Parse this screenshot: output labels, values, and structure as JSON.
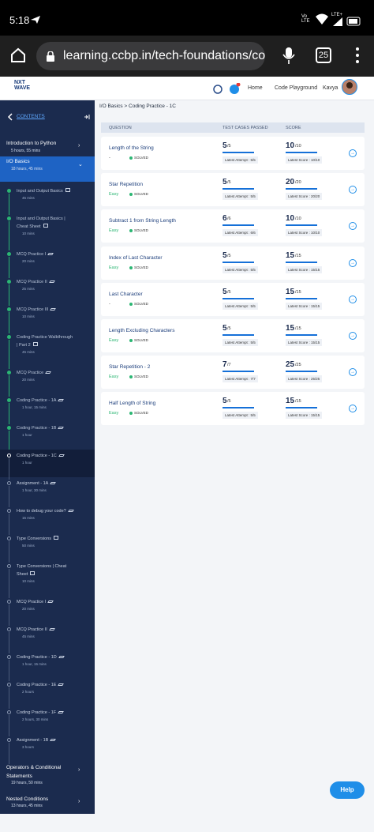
{
  "status_bar": {
    "time": "5:18",
    "network": "Vo LTE",
    "signal": "LTE+"
  },
  "browser": {
    "url": "learning.ccbp.in/tech-foundations/course?",
    "tabs": "25"
  },
  "header": {
    "logo_top": "NXT",
    "logo_bottom": "WAVE",
    "nav": [
      "Home",
      "Code Playground"
    ],
    "user": "Kavya"
  },
  "sidebar": {
    "title": "CONTENTS",
    "before": [
      {
        "name": "Introduction to Python",
        "duration": "5 hours, 55 mins"
      },
      {
        "name": "I/O Basics",
        "duration": "18 hours, 45 mins"
      }
    ],
    "items": [
      {
        "name": "Input and Output Basics",
        "duration": "45 mins"
      },
      {
        "name": "Input and Output Basics | Cheat Sheet",
        "duration": "10 mins"
      },
      {
        "name": "MCQ Practice I",
        "duration": "20 mins"
      },
      {
        "name": "MCQ Practice II",
        "duration": "25 mins"
      },
      {
        "name": "MCQ Practice III",
        "duration": "10 mins"
      },
      {
        "name": "Coding Practice Walkthrough | Part 2",
        "duration": "45 mins"
      },
      {
        "name": "MCQ Practice",
        "duration": "20 mins"
      },
      {
        "name": "Coding Practice - 1A",
        "duration": "1 hour, 15 mins"
      },
      {
        "name": "Coding Practice - 1B",
        "duration": "1 hour"
      },
      {
        "name": "Coding Practice - 1C",
        "duration": "1 hour"
      },
      {
        "name": "Assignment - 1A",
        "duration": "1 hour, 30 mins"
      },
      {
        "name": "How to debug your code?",
        "duration": "15 mins"
      },
      {
        "name": "Type Conversions",
        "duration": "50 mins"
      },
      {
        "name": "Type Conversions | Cheat Sheet",
        "duration": "10 mins"
      },
      {
        "name": "MCQ Practice I",
        "duration": "20 mins"
      },
      {
        "name": "MCQ Practice II",
        "duration": "45 mins"
      },
      {
        "name": "Coding Practice - 1D",
        "duration": "1 hour, 15 mins"
      },
      {
        "name": "Coding Practice - 1E",
        "duration": "2 hours"
      },
      {
        "name": "Coding Practice - 1F",
        "duration": "2 hours, 30 mins"
      },
      {
        "name": "Assignment - 1B",
        "duration": "3 hours"
      }
    ],
    "after": [
      {
        "name": "Operators & Conditional Statements",
        "duration": "19 hours, 50 mins"
      },
      {
        "name": "Nested Conditions",
        "duration": "13 hours, 45 mins"
      }
    ]
  },
  "main": {
    "breadcrumb": "I/O Basics > Coding Practice - 1C",
    "columns": [
      "QUESTION",
      "TEST CASES PASSED",
      "SCORE"
    ],
    "rows": [
      {
        "name": "Length of the String",
        "difficulty": "-",
        "status": "SOLVED",
        "passed": "5",
        "passed_total": "/5",
        "attempt": "Latest Attempt : 5/5",
        "score": "10",
        "score_total": "/10",
        "latest_score": "Latest Score : 10/10"
      },
      {
        "name": "Star Repetition",
        "difficulty": "Easy",
        "status": "SOLVED",
        "passed": "5",
        "passed_total": "/5",
        "attempt": "Latest Attempt : 5/5",
        "score": "20",
        "score_total": "/20",
        "latest_score": "Latest Score : 20/20"
      },
      {
        "name": "Subtract 1 from String Length",
        "difficulty": "Easy",
        "status": "SOLVED",
        "passed": "6",
        "passed_total": "/6",
        "attempt": "Latest Attempt : 6/6",
        "score": "10",
        "score_total": "/10",
        "latest_score": "Latest Score : 10/10"
      },
      {
        "name": "Index of Last Character",
        "difficulty": "Easy",
        "status": "SOLVED",
        "passed": "5",
        "passed_total": "/5",
        "attempt": "Latest Attempt : 5/5",
        "score": "15",
        "score_total": "/15",
        "latest_score": "Latest Score : 15/15"
      },
      {
        "name": "Last Character",
        "difficulty": "-",
        "status": "SOLVED",
        "passed": "5",
        "passed_total": "/5",
        "attempt": "Latest Attempt : 5/5",
        "score": "15",
        "score_total": "/15",
        "latest_score": "Latest Score : 15/15"
      },
      {
        "name": "Length Excluding Characters",
        "difficulty": "Easy",
        "status": "SOLVED",
        "passed": "5",
        "passed_total": "/5",
        "attempt": "Latest Attempt : 5/5",
        "score": "15",
        "score_total": "/15",
        "latest_score": "Latest Score : 15/15"
      },
      {
        "name": "Star Repetition - 2",
        "difficulty": "Easy",
        "status": "SOLVED",
        "passed": "7",
        "passed_total": "/7",
        "attempt": "Latest Attempt : 7/7",
        "score": "25",
        "score_total": "/25",
        "latest_score": "Latest Score : 25/25"
      },
      {
        "name": "Half Length of String",
        "difficulty": "Easy",
        "status": "SOLVED",
        "passed": "5",
        "passed_total": "/5",
        "attempt": "Latest Attempt : 5/5",
        "score": "15",
        "score_total": "/15",
        "latest_score": "Latest Score : 15/15"
      }
    ],
    "help": "Help"
  }
}
